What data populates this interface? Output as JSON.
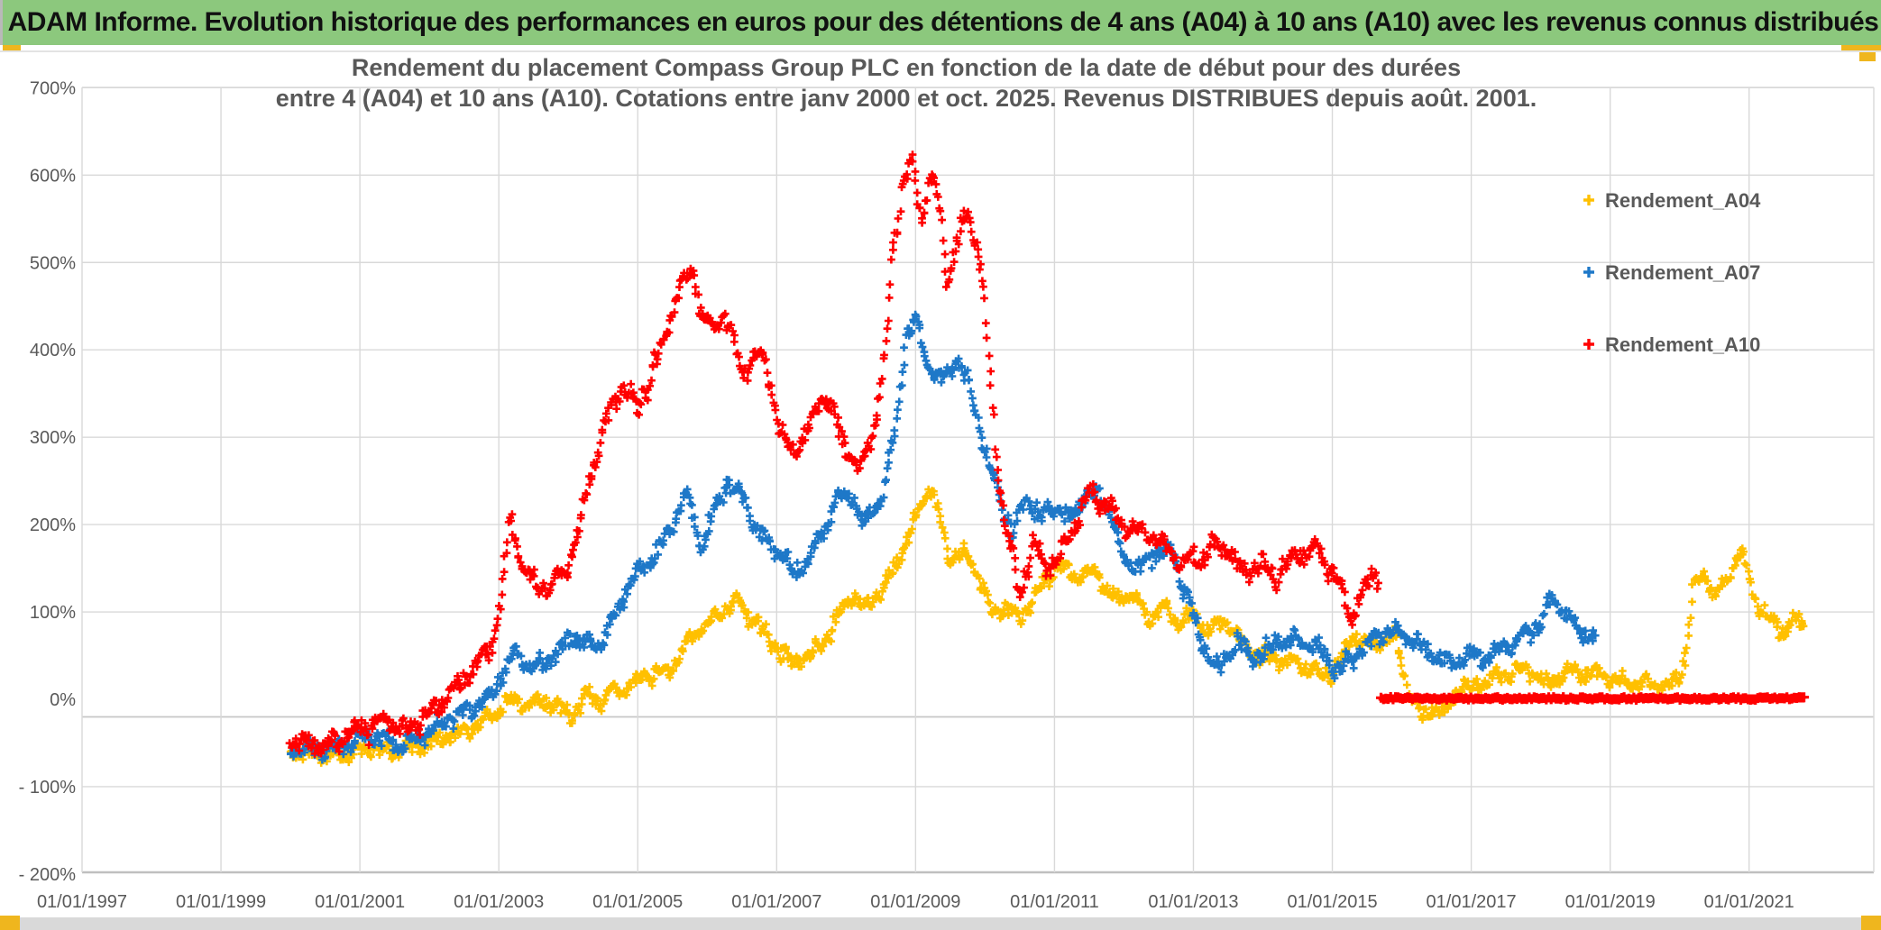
{
  "header": {
    "title": "ADAM Informe. Evolution historique des performances en euros pour des détentions de 4 ans (A04) à 10 ans (A10) avec les revenus connus distribués"
  },
  "colors": {
    "header_green": "#8CC87D",
    "accent_orange": "#EFB61E",
    "text_gray": "#595959",
    "gridline": "#D9D9D9",
    "axis_line": "#C6C6C6",
    "series_a04": "#FFC000",
    "series_a07": "#1E78C8",
    "series_a10": "#FF0000"
  },
  "chart_data": {
    "type": "scatter",
    "title_lines": [
      "Rendement du placement Compass Group PLC en fonction de la date de début pour des durées",
      "entre 4 (A04) et 10 ans (A10). Cotations entre janv 2000 et oct. 2025. Revenus DISTRIBUES depuis août. 2001."
    ],
    "x_axis": {
      "tick_labels": [
        "01/01/1997",
        "01/01/1999",
        "01/01/2001",
        "01/01/2003",
        "01/01/2005",
        "01/01/2007",
        "01/01/2009",
        "01/01/2011",
        "01/01/2013",
        "01/01/2015",
        "01/01/2017",
        "01/01/2019",
        "01/01/2021"
      ],
      "tick_years": [
        1997,
        1999,
        2001,
        2003,
        2005,
        2007,
        2009,
        2011,
        2013,
        2015,
        2017,
        2019,
        2021
      ],
      "grid": true
    },
    "y_axis": {
      "tick_labels": [
        "700%",
        "600%",
        "500%",
        "400%",
        "300%",
        "200%",
        "100%",
        "0%",
        "- 100%",
        "- 200%"
      ],
      "tick_values": [
        700,
        600,
        500,
        400,
        300,
        200,
        100,
        0,
        -100,
        -200
      ],
      "min": -200,
      "max": 700,
      "step": 100,
      "grid": true
    },
    "legend": {
      "position": "right-inside",
      "items": [
        {
          "label": "Rendement_A04",
          "color": "#FFC000",
          "marker": "plus"
        },
        {
          "label": "Rendement_A07",
          "color": "#1E78C8",
          "marker": "plus"
        },
        {
          "label": "Rendement_A10",
          "color": "#FF0000",
          "marker": "plus"
        }
      ]
    },
    "series": [
      {
        "name": "Rendement_A04",
        "color": "#FFC000",
        "marker": "plus",
        "jitter": 9,
        "points_per_year": 58,
        "seed": 11,
        "anchors": [
          [
            2000.0,
            -58
          ],
          [
            2000.3,
            -62
          ],
          [
            2000.6,
            -66
          ],
          [
            2000.9,
            -60
          ],
          [
            2001.2,
            -56
          ],
          [
            2001.5,
            -61
          ],
          [
            2001.8,
            -54
          ],
          [
            2002.1,
            -46
          ],
          [
            2002.4,
            -38
          ],
          [
            2002.7,
            -28
          ],
          [
            2002.95,
            -16
          ],
          [
            2003.15,
            0
          ],
          [
            2003.4,
            -5
          ],
          [
            2003.7,
            -2
          ],
          [
            2003.95,
            -14
          ],
          [
            2004.05,
            -22
          ],
          [
            2004.25,
            4
          ],
          [
            2004.45,
            -2
          ],
          [
            2004.65,
            10
          ],
          [
            2004.9,
            15
          ],
          [
            2005.15,
            28
          ],
          [
            2005.45,
            30
          ],
          [
            2005.75,
            70
          ],
          [
            2006.15,
            95
          ],
          [
            2006.4,
            115
          ],
          [
            2006.7,
            87
          ],
          [
            2006.95,
            63
          ],
          [
            2007.2,
            44
          ],
          [
            2007.5,
            50
          ],
          [
            2007.8,
            80
          ],
          [
            2008.05,
            118
          ],
          [
            2008.3,
            104
          ],
          [
            2008.55,
            128
          ],
          [
            2008.75,
            158
          ],
          [
            2008.9,
            185
          ],
          [
            2009.1,
            228
          ],
          [
            2009.2,
            245
          ],
          [
            2009.35,
            205
          ],
          [
            2009.5,
            160
          ],
          [
            2009.7,
            168
          ],
          [
            2009.9,
            142
          ],
          [
            2010.1,
            100
          ],
          [
            2010.3,
            108
          ],
          [
            2010.5,
            92
          ],
          [
            2010.7,
            116
          ],
          [
            2010.9,
            136
          ],
          [
            2011.05,
            157
          ],
          [
            2011.3,
            141
          ],
          [
            2011.6,
            145
          ],
          [
            2011.9,
            110
          ],
          [
            2012.15,
            123
          ],
          [
            2012.35,
            90
          ],
          [
            2012.55,
            108
          ],
          [
            2012.75,
            89
          ],
          [
            2012.95,
            96
          ],
          [
            2013.2,
            82
          ],
          [
            2013.5,
            86
          ],
          [
            2013.65,
            68
          ],
          [
            2013.85,
            56
          ],
          [
            2014.05,
            48
          ],
          [
            2014.4,
            42
          ],
          [
            2014.7,
            34
          ],
          [
            2014.95,
            27
          ],
          [
            2015.15,
            50
          ],
          [
            2015.3,
            73
          ],
          [
            2015.55,
            62
          ],
          [
            2015.9,
            73
          ],
          [
            2016.1,
            12
          ],
          [
            2016.3,
            -22
          ],
          [
            2016.45,
            -8
          ],
          [
            2016.6,
            -16
          ],
          [
            2016.85,
            14
          ],
          [
            2017.2,
            18
          ],
          [
            2017.5,
            30
          ],
          [
            2017.9,
            34
          ],
          [
            2018.05,
            17
          ],
          [
            2018.4,
            32
          ],
          [
            2018.8,
            28
          ],
          [
            2019.2,
            20
          ],
          [
            2019.5,
            17
          ],
          [
            2019.85,
            14
          ],
          [
            2020.0,
            22
          ],
          [
            2020.1,
            60
          ],
          [
            2020.2,
            130
          ],
          [
            2020.35,
            140
          ],
          [
            2020.5,
            122
          ],
          [
            2020.65,
            132
          ],
          [
            2020.8,
            160
          ],
          [
            2020.9,
            172
          ],
          [
            2021.0,
            135
          ],
          [
            2021.1,
            112
          ],
          [
            2021.25,
            96
          ],
          [
            2021.45,
            76
          ],
          [
            2021.6,
            86
          ],
          [
            2021.75,
            88
          ],
          [
            2021.8,
            82
          ]
        ]
      },
      {
        "name": "Rendement_A07",
        "color": "#1E78C8",
        "marker": "plus",
        "jitter": 10,
        "points_per_year": 58,
        "seed": 23,
        "anchors": [
          [
            2000.0,
            -58
          ],
          [
            2000.45,
            -58
          ],
          [
            2000.9,
            -48
          ],
          [
            2001.2,
            -41
          ],
          [
            2001.5,
            -53
          ],
          [
            2001.85,
            -44
          ],
          [
            2002.2,
            -27
          ],
          [
            2002.5,
            -13
          ],
          [
            2002.85,
            0
          ],
          [
            2003.05,
            28
          ],
          [
            2003.2,
            55
          ],
          [
            2003.5,
            36
          ],
          [
            2003.75,
            46
          ],
          [
            2004.1,
            72
          ],
          [
            2004.4,
            58
          ],
          [
            2004.7,
            95
          ],
          [
            2004.9,
            138
          ],
          [
            2005.15,
            155
          ],
          [
            2005.4,
            182
          ],
          [
            2005.7,
            235
          ],
          [
            2005.9,
            172
          ],
          [
            2006.1,
            215
          ],
          [
            2006.3,
            252
          ],
          [
            2006.5,
            230
          ],
          [
            2006.75,
            188
          ],
          [
            2007.1,
            166
          ],
          [
            2007.25,
            143
          ],
          [
            2007.45,
            160
          ],
          [
            2007.7,
            192
          ],
          [
            2007.85,
            230
          ],
          [
            2008.1,
            235
          ],
          [
            2008.25,
            195
          ],
          [
            2008.5,
            232
          ],
          [
            2008.7,
            300
          ],
          [
            2008.85,
            415
          ],
          [
            2009.0,
            435
          ],
          [
            2009.2,
            382
          ],
          [
            2009.35,
            366
          ],
          [
            2009.6,
            390
          ],
          [
            2009.8,
            352
          ],
          [
            2010.0,
            285
          ],
          [
            2010.2,
            232
          ],
          [
            2010.4,
            190
          ],
          [
            2010.6,
            234
          ],
          [
            2010.8,
            206
          ],
          [
            2011.0,
            222
          ],
          [
            2011.2,
            206
          ],
          [
            2011.5,
            238
          ],
          [
            2011.75,
            226
          ],
          [
            2012.0,
            160
          ],
          [
            2012.2,
            150
          ],
          [
            2012.45,
            168
          ],
          [
            2012.7,
            167
          ],
          [
            2012.9,
            120
          ],
          [
            2013.1,
            70
          ],
          [
            2013.37,
            32
          ],
          [
            2013.62,
            68
          ],
          [
            2013.84,
            45
          ],
          [
            2014.18,
            65
          ],
          [
            2014.43,
            68
          ],
          [
            2014.73,
            64
          ],
          [
            2015.1,
            32
          ],
          [
            2015.4,
            55
          ],
          [
            2015.78,
            79
          ],
          [
            2016.17,
            68
          ],
          [
            2016.45,
            52
          ],
          [
            2016.7,
            39
          ],
          [
            2017.0,
            52
          ],
          [
            2017.25,
            46
          ],
          [
            2017.5,
            63
          ],
          [
            2017.8,
            76
          ],
          [
            2018.0,
            88
          ],
          [
            2018.15,
            117
          ],
          [
            2018.3,
            105
          ],
          [
            2018.45,
            87
          ],
          [
            2018.6,
            77
          ],
          [
            2018.78,
            70
          ]
        ]
      },
      {
        "name": "Rendement_A10",
        "color": "#FF0000",
        "marker": "plus",
        "jitter": 12,
        "points_per_year": 58,
        "seed": 37,
        "anchors": [
          [
            2000.0,
            -49
          ],
          [
            2000.3,
            -52
          ],
          [
            2000.6,
            -48
          ],
          [
            2000.9,
            -38
          ],
          [
            2001.2,
            -30
          ],
          [
            2001.4,
            -20
          ],
          [
            2001.65,
            -36
          ],
          [
            2001.85,
            -26
          ],
          [
            2002.1,
            -12
          ],
          [
            2002.25,
            2
          ],
          [
            2002.5,
            22
          ],
          [
            2002.7,
            42
          ],
          [
            2002.9,
            58
          ],
          [
            2003.05,
            130
          ],
          [
            2003.16,
            210
          ],
          [
            2003.3,
            162
          ],
          [
            2003.5,
            130
          ],
          [
            2003.75,
            130
          ],
          [
            2003.95,
            143
          ],
          [
            2004.1,
            178
          ],
          [
            2004.3,
            250
          ],
          [
            2004.6,
            330
          ],
          [
            2004.8,
            360
          ],
          [
            2005.0,
            332
          ],
          [
            2005.3,
            392
          ],
          [
            2005.6,
            470
          ],
          [
            2005.8,
            490
          ],
          [
            2005.95,
            432
          ],
          [
            2006.1,
            422
          ],
          [
            2006.25,
            445
          ],
          [
            2006.5,
            372
          ],
          [
            2006.75,
            400
          ],
          [
            2006.9,
            372
          ],
          [
            2007.05,
            302
          ],
          [
            2007.25,
            282
          ],
          [
            2007.5,
            312
          ],
          [
            2007.62,
            348
          ],
          [
            2007.8,
            330
          ],
          [
            2007.95,
            298
          ],
          [
            2008.2,
            262
          ],
          [
            2008.4,
            312
          ],
          [
            2008.55,
            380
          ],
          [
            2008.68,
            520
          ],
          [
            2008.8,
            585
          ],
          [
            2008.95,
            618
          ],
          [
            2009.1,
            548
          ],
          [
            2009.2,
            598
          ],
          [
            2009.32,
            578
          ],
          [
            2009.45,
            482
          ],
          [
            2009.6,
            522
          ],
          [
            2009.75,
            558
          ],
          [
            2009.9,
            520
          ],
          [
            2010.0,
            452
          ],
          [
            2010.15,
            282
          ],
          [
            2010.3,
            202
          ],
          [
            2010.5,
            122
          ],
          [
            2010.7,
            182
          ],
          [
            2010.85,
            152
          ],
          [
            2011.05,
            157
          ],
          [
            2011.3,
            200
          ],
          [
            2011.5,
            241
          ],
          [
            2011.65,
            226
          ],
          [
            2011.95,
            203
          ],
          [
            2012.15,
            191
          ],
          [
            2012.35,
            190
          ],
          [
            2012.55,
            180
          ],
          [
            2012.85,
            158
          ],
          [
            2013.1,
            165
          ],
          [
            2013.45,
            176
          ],
          [
            2013.7,
            146
          ],
          [
            2013.96,
            156
          ],
          [
            2014.17,
            138
          ],
          [
            2014.5,
            165
          ],
          [
            2014.77,
            172
          ],
          [
            2015.06,
            138
          ],
          [
            2015.2,
            110
          ],
          [
            2015.28,
            90
          ],
          [
            2015.4,
            120
          ],
          [
            2015.53,
            137
          ],
          [
            2015.62,
            147
          ],
          [
            2015.66,
            136
          ]
        ]
      },
      {
        "name": "Rendement_A10_flat",
        "color": "#FF0000",
        "marker": "thick-line",
        "value": 1,
        "x_start": 2015.7,
        "x_end": 2021.8,
        "segments": [
          [
            2015.7,
            2021.52
          ],
          [
            2021.6,
            2021.8
          ]
        ]
      }
    ],
    "x_range_years": [
      1997,
      2022.85
    ],
    "notes": "dense weekly scatter of + markers; red A10 series becomes a flat line at ~0% after Oct 2015"
  }
}
